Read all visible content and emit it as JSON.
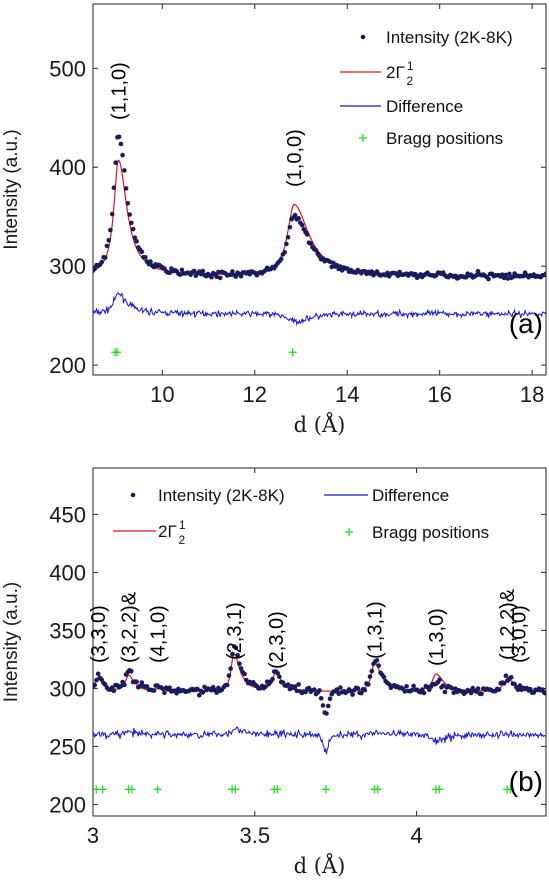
{
  "chart_data": [
    {
      "type": "line",
      "panel_label": "(a)",
      "xlabel": "d (Å)",
      "ylabel": "Intensity (a.u.)",
      "xlim": [
        8.5,
        18.3
      ],
      "ylim": [
        190,
        565
      ],
      "xticks": [
        10,
        12,
        14,
        16,
        18
      ],
      "yticks": [
        200,
        300,
        400,
        500
      ],
      "legend_position": "top-right",
      "legend": [
        "Intensity (2K-8K)",
        "2Γ",
        "Difference",
        "Bragg positions"
      ],
      "legend_gamma": {
        "base": "2Γ",
        "sup": "1",
        "sub": "2"
      },
      "colors": {
        "observed": "#1a1a5e",
        "calc": "#e8141b",
        "diff": "#1414e0",
        "bragg": "#22dd22"
      },
      "baseline": 290,
      "diff_offset": 252,
      "peaks": [
        {
          "d": 9.05,
          "obs": 432,
          "calc": 407,
          "wl": 0.12,
          "wr": 0.22,
          "label": "(1,1,0)"
        },
        {
          "d": 12.85,
          "obs": 352,
          "calc": 362,
          "wl": 0.17,
          "wr": 0.38,
          "label": "(1,0,0)"
        }
      ],
      "bragg": [
        8.98,
        9.02,
        12.82
      ],
      "bragg_y": 213
    },
    {
      "type": "line",
      "panel_label": "(b)",
      "xlabel": "d (Å)",
      "ylabel": "Intensity (a.u.)",
      "xlim": [
        3.0,
        4.4
      ],
      "ylim": [
        190,
        490
      ],
      "xticks": [
        3,
        3.5,
        4
      ],
      "yticks": [
        200,
        250,
        300,
        350,
        400,
        450
      ],
      "legend_position": "top",
      "legend": [
        "Intensity (2K-8K)",
        "Difference",
        "2Γ",
        "Bragg positions"
      ],
      "legend_gamma": {
        "base": "2Γ",
        "sup": "1",
        "sub": "2"
      },
      "colors": {
        "observed": "#1a1a5e",
        "calc": "#e8141b",
        "diff": "#1414e0",
        "bragg": "#22dd22"
      },
      "baseline": 297,
      "diff_offset": 260,
      "peaks": [
        {
          "d": 3.015,
          "obs": 310,
          "calc": 309,
          "wl": 0.012,
          "wr": 0.018,
          "label": "(3,3,0)"
        },
        {
          "d": 3.11,
          "obs": 314,
          "calc": 311,
          "wl": 0.012,
          "wr": 0.02,
          "label": "(3,2,2)&"
        },
        {
          "d": 3.2,
          "obs": 300,
          "calc": 299,
          "wl": 0.012,
          "wr": 0.02,
          "label": "(4,1,0)"
        },
        {
          "d": 3.435,
          "obs": 338,
          "calc": 330,
          "wl": 0.01,
          "wr": 0.022,
          "label": "(2,3,1)"
        },
        {
          "d": 3.565,
          "obs": 314,
          "calc": 313,
          "wl": 0.012,
          "wr": 0.02,
          "label": "(2,3,0)"
        },
        {
          "d": 3.87,
          "obs": 325,
          "calc": 322,
          "wl": 0.012,
          "wr": 0.024,
          "label": "(1,3,1)"
        },
        {
          "d": 4.06,
          "obs": 305,
          "calc": 312,
          "wl": 0.014,
          "wr": 0.026,
          "label": "(1,3,0)"
        },
        {
          "d": 4.28,
          "obs": 309,
          "calc": 308,
          "wl": 0.014,
          "wr": 0.026,
          "label": "(1,2,2)&"
        }
      ],
      "extra_labels": [
        {
          "d": 4.315,
          "label": "(3,0,0)"
        }
      ],
      "dip": {
        "d": 3.72,
        "obs": 278,
        "w": 0.012
      },
      "bragg": [
        3.01,
        3.03,
        3.11,
        3.12,
        3.2,
        3.43,
        3.44,
        3.56,
        3.57,
        3.72,
        3.87,
        3.88,
        4.06,
        4.07,
        4.28,
        4.29
      ],
      "bragg_y": 213
    }
  ]
}
